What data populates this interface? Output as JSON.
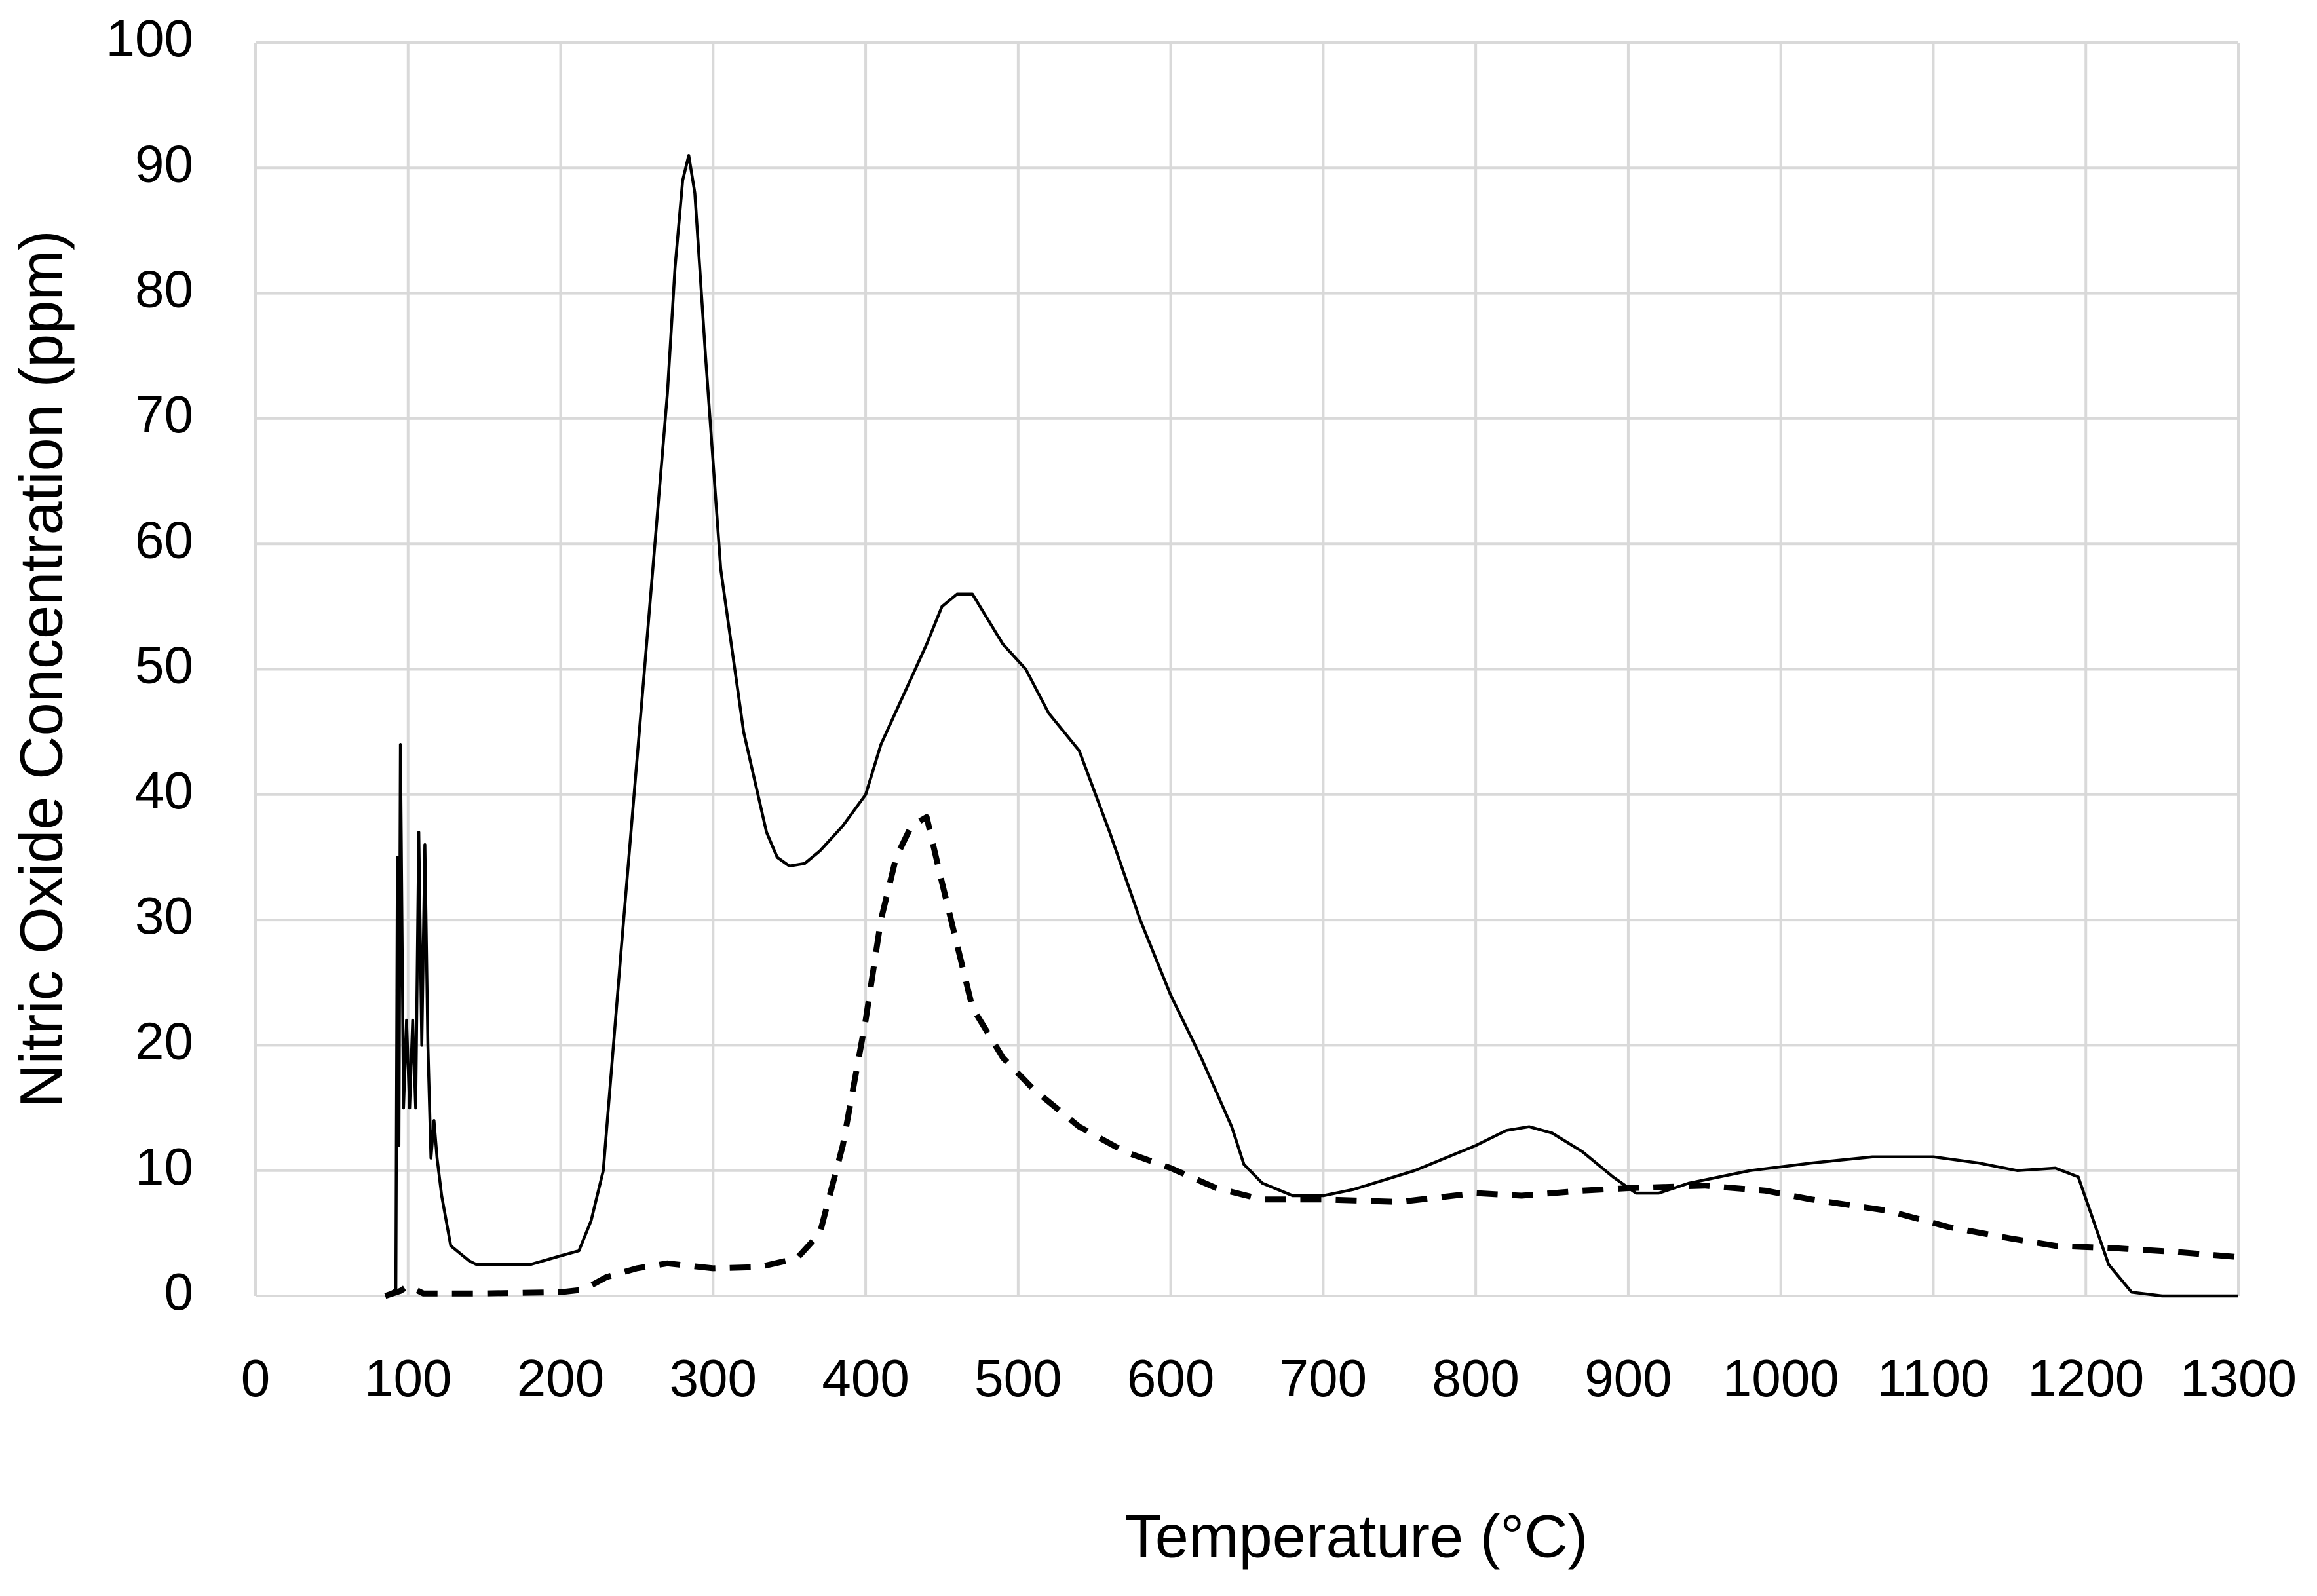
{
  "chart_data": {
    "type": "line",
    "xlabel": "Temperature (°C)",
    "ylabel": "Nitric Oxide Concentration (ppm)",
    "xlim": [
      0,
      1300
    ],
    "xticks": [
      0,
      100,
      200,
      300,
      400,
      500,
      600,
      700,
      800,
      900,
      1000,
      1100,
      1200,
      1300
    ],
    "ylim": [
      0,
      100
    ],
    "yticks": [
      0,
      10,
      20,
      30,
      40,
      50,
      60,
      70,
      80,
      90,
      100
    ],
    "grid": true,
    "series": [
      {
        "color": "#000000",
        "dashed": false,
        "x": [
          85,
          92,
          93,
          94,
          95,
          97,
          99,
          101,
          103,
          105,
          107,
          109,
          111,
          113,
          115,
          117,
          119,
          122,
          128,
          140,
          145,
          180,
          200,
          212,
          220,
          228,
          240,
          255,
          270,
          275,
          280,
          284,
          288,
          295,
          305,
          320,
          335,
          342,
          350,
          360,
          370,
          385,
          400,
          410,
          425,
          440,
          450,
          460,
          470,
          480,
          490,
          505,
          520,
          540,
          560,
          580,
          600,
          620,
          640,
          648,
          660,
          680,
          700,
          720,
          760,
          800,
          820,
          835,
          850,
          870,
          890,
          905,
          920,
          940,
          980,
          1020,
          1060,
          1100,
          1130,
          1155,
          1180,
          1195,
          1205,
          1215,
          1230,
          1250,
          1300
        ],
        "values": [
          0,
          0.5,
          35,
          12,
          44,
          15,
          22,
          15,
          22,
          15,
          37,
          20,
          36,
          20,
          11,
          14,
          11,
          8,
          4,
          2.8,
          2.5,
          2.5,
          3.2,
          3.6,
          6,
          10,
          28,
          50,
          72,
          82,
          89,
          91,
          88,
          75,
          58,
          45,
          37,
          35,
          34.3,
          34.5,
          35.5,
          37.5,
          40,
          44,
          48,
          52,
          55,
          56,
          56,
          54,
          52,
          50,
          46.5,
          43.5,
          37,
          30,
          24,
          19,
          13.5,
          10.5,
          9,
          8,
          8,
          8.5,
          10,
          12,
          13.2,
          13.5,
          13,
          11.5,
          9.5,
          8.2,
          8.2,
          9,
          10,
          10.6,
          11.1,
          11.1,
          10.6,
          10,
          10.2,
          9.5,
          6,
          2.5,
          0.3,
          0,
          0
        ]
      },
      {
        "color": "#000000",
        "dashed": true,
        "x": [
          85,
          95,
          100,
          105,
          110,
          150,
          200,
          215,
          230,
          250,
          270,
          285,
          300,
          330,
          355,
          370,
          385,
          400,
          410,
          420,
          430,
          440,
          450,
          460,
          470,
          490,
          510,
          540,
          570,
          600,
          630,
          660,
          700,
          750,
          800,
          830,
          870,
          900,
          950,
          990,
          1020,
          1070,
          1110,
          1150,
          1180,
          1220,
          1260,
          1300
        ],
        "values": [
          0,
          0.4,
          0.8,
          0.5,
          0.2,
          0.2,
          0.3,
          0.5,
          1.5,
          2.2,
          2.6,
          2.4,
          2.2,
          2.3,
          3,
          5,
          12,
          22,
          30,
          35,
          37.5,
          38.2,
          33,
          28,
          23,
          19,
          16.5,
          13.5,
          11.5,
          10.2,
          8.6,
          7.7,
          7.7,
          7.5,
          8.2,
          8,
          8.4,
          8.6,
          8.8,
          8.4,
          7.7,
          6.8,
          5.5,
          4.6,
          4,
          3.8,
          3.5,
          3.1
        ]
      }
    ]
  }
}
